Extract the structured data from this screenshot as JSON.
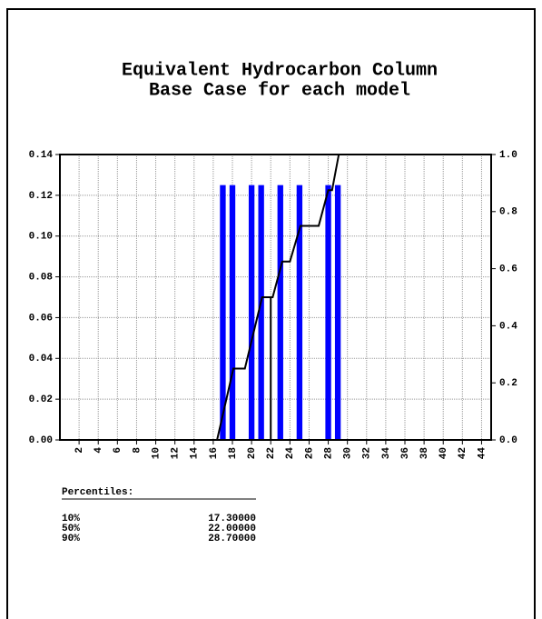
{
  "chart_data": {
    "type": "bar",
    "title": [
      "Equivalent Hydrocarbon Column",
      "Base Case for each model"
    ],
    "x": [
      17,
      18,
      20,
      21,
      23,
      25,
      28,
      29
    ],
    "values": [
      0.125,
      0.125,
      0.125,
      0.125,
      0.125,
      0.125,
      0.125,
      0.125
    ],
    "color": "#0000ff",
    "lines": [
      {
        "x": [
          16.4,
          18.1,
          19.3,
          21.1,
          22.2,
          23.2,
          24,
          25.1,
          27,
          28,
          28.4,
          29.1
        ],
        "values": [
          0,
          0.25,
          0.25,
          0.5,
          0.5,
          0.625,
          0.625,
          0.75,
          0.75,
          0.875,
          0.875,
          1.0
        ],
        "axis": "y2",
        "color": "#000000"
      },
      {
        "x": [
          22,
          22
        ],
        "values": [
          0,
          0.5
        ],
        "axis": "y2",
        "color": "#000000"
      }
    ],
    "xlim": [
      0,
      45
    ],
    "xticks": [
      2,
      4,
      6,
      8,
      10,
      12,
      14,
      16,
      18,
      20,
      22,
      24,
      26,
      28,
      30,
      32,
      34,
      36,
      38,
      40,
      42,
      44
    ],
    "ylim": [
      0,
      0.14
    ],
    "yticks": [
      {
        "value": 0,
        "label": "0.00"
      },
      0.02,
      0.04,
      0.06,
      0.08,
      {
        "value": 0.1,
        "label": "0.10"
      },
      0.12,
      0.14
    ],
    "y2lim": [
      0,
      1
    ],
    "y2ticks": [
      {
        "value": 0,
        "label": "0.0"
      },
      0.2,
      0.4,
      0.6,
      0.8,
      {
        "value": 1,
        "label": "1.0"
      }
    ],
    "grid": true
  },
  "percentiles": {
    "title": "Percentiles:",
    "rows": [
      [
        "10%",
        "17.30000"
      ],
      [
        "50%",
        "22.00000"
      ],
      [
        "90%",
        "28.70000"
      ]
    ]
  }
}
